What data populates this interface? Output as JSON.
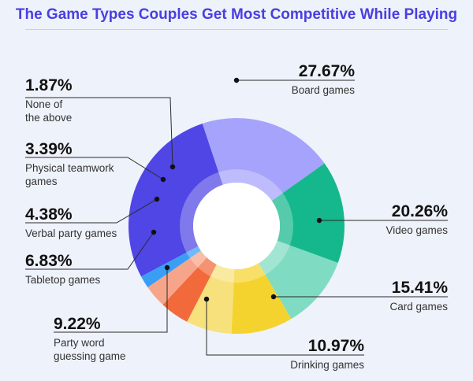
{
  "chart_data": {
    "type": "pie",
    "title": "The Game Types Couples Get Most Competitive While Playing",
    "value_suffix": "%",
    "slices": [
      {
        "label": "Board games",
        "value": 27.67,
        "color": "#4f46e5"
      },
      {
        "label": "Video games",
        "value": 20.26,
        "color": "#a5a3fb"
      },
      {
        "label": "Card games",
        "value": 15.41,
        "color": "#14b88c"
      },
      {
        "label": "Drinking games",
        "value": 10.97,
        "color": "#7fdcc2"
      },
      {
        "label": "Party word guessing game",
        "value": 9.22,
        "color": "#f5d32e"
      },
      {
        "label": "Tabletop games",
        "value": 6.83,
        "color": "#f7e17d"
      },
      {
        "label": "Verbal party games",
        "value": 4.38,
        "color": "#f26a3b"
      },
      {
        "label": "Physical teamwork games",
        "value": 3.39,
        "color": "#f7a58a"
      },
      {
        "label": "None of the above",
        "value": 1.87,
        "color": "#3b9ef5"
      }
    ]
  }
}
